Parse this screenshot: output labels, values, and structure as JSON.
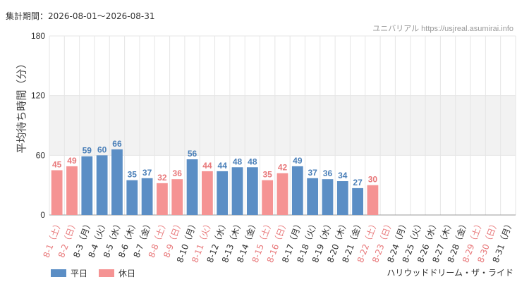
{
  "header": {
    "period": "集計期間：2026-08-01～2026-08-31",
    "source": "ユニバリアル https://usjreal.asumirai.info"
  },
  "footer": {
    "attraction": "ハリウッドドリーム・ザ・ライド"
  },
  "colors": {
    "weekday": "#5b8ec5",
    "holiday": "#f59393",
    "weekday_text": "#4a7fb8",
    "holiday_text": "#e8787a",
    "band": "#f2f2f2",
    "grid": "#e6e6e6"
  },
  "chart_data": {
    "type": "bar",
    "ylabel": "平均待ち時間（分）",
    "ylim": [
      0,
      180
    ],
    "yticks": [
      0,
      60,
      120,
      180
    ],
    "shaded_band": [
      60,
      120
    ],
    "legend": [
      {
        "key": "weekday",
        "label": "平日"
      },
      {
        "key": "holiday",
        "label": "休日"
      }
    ],
    "categories": [
      "8-1（土）",
      "8-2（日）",
      "8-3（月）",
      "8-4（火）",
      "8-5（水）",
      "8-6（木）",
      "8-7（金）",
      "8-8（土）",
      "8-9（日）",
      "8-10（月）",
      "8-11（火）",
      "8-12（水）",
      "8-13（木）",
      "8-14（金）",
      "8-15（土）",
      "8-16（日）",
      "8-17（月）",
      "8-18（火）",
      "8-19（水）",
      "8-20（木）",
      "8-21（金）",
      "8-22（土）",
      "8-23（日）",
      "8-24（月）",
      "8-25（火）",
      "8-26（水）",
      "8-27（木）",
      "8-28（金）",
      "8-29（土）",
      "8-30（日）",
      "8-31（月）"
    ],
    "day_type": [
      "holiday",
      "holiday",
      "weekday",
      "weekday",
      "weekday",
      "weekday",
      "weekday",
      "holiday",
      "holiday",
      "weekday",
      "holiday",
      "weekday",
      "weekday",
      "weekday",
      "holiday",
      "holiday",
      "weekday",
      "weekday",
      "weekday",
      "weekday",
      "weekday",
      "holiday",
      "holiday",
      "weekday",
      "weekday",
      "weekday",
      "weekday",
      "weekday",
      "holiday",
      "holiday",
      "weekday"
    ],
    "values": [
      45,
      49,
      59,
      60,
      66,
      35,
      37,
      32,
      36,
      56,
      44,
      44,
      48,
      48,
      35,
      42,
      49,
      37,
      36,
      34,
      27,
      30,
      null,
      null,
      null,
      null,
      null,
      null,
      null,
      null,
      null
    ]
  }
}
